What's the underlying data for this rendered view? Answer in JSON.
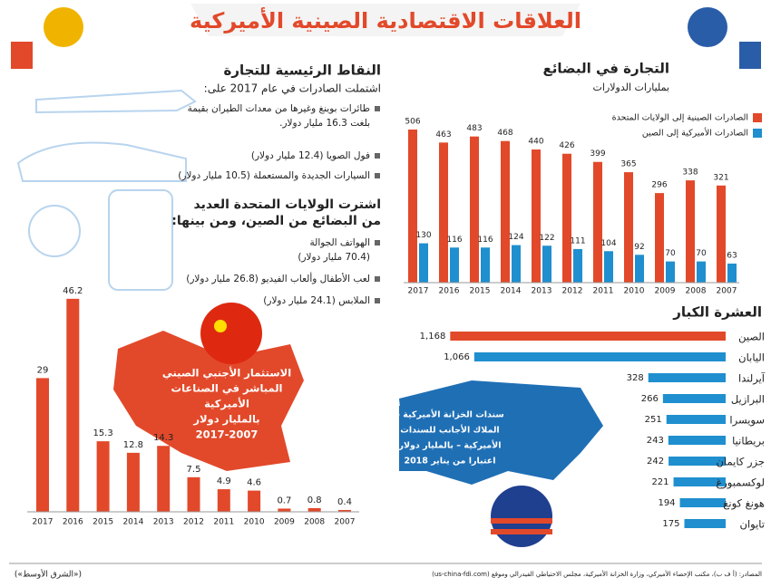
{
  "header": {
    "title": "العلاقات الاقتصادية الصينية الأميركية"
  },
  "trade_points": {
    "title": "النقاط الرئيسية للتجارة",
    "intro": "اشتملت الصادرات في عام 2017 على:",
    "exports": [
      [
        "طائرات بوينغ وغيرها من معدات الطيران بقيمة",
        "بلغت 16.3 مليار دولار."
      ],
      [
        "فول الصويا (12.4 مليار دولار)"
      ],
      [
        "السيارات الجديدة والمستعملة (10.5 مليار دولار)"
      ]
    ],
    "imports_title": [
      "اشترت الولايات المتحدة العديد",
      "من البضائع من الصين، ومن بينها:"
    ],
    "imports": [
      [
        "الهواتف الجوالة",
        "(70.4 مليار دولار)"
      ],
      [
        "لعب الأطفال وألعاب الفيديو (26.8 مليار دولار)"
      ],
      [
        "الملابس (24.1 مليار دولار)"
      ]
    ]
  },
  "chart_data": [
    {
      "type": "grouped-bar",
      "title": "التجارة في البضائع",
      "subtitle": "بمليارات الدولارات",
      "categories": [
        "2017",
        "2016",
        "2015",
        "2014",
        "2013",
        "2012",
        "2011",
        "2010",
        "2009",
        "2008",
        "2007"
      ],
      "series": [
        {
          "name": "الصادرات الصينية إلى الولايات المتحدة",
          "color": "#e2492a",
          "values": [
            506,
            463,
            483,
            468,
            440,
            426,
            399,
            365,
            296,
            338,
            321
          ]
        },
        {
          "name": "الصادرات الأميركية إلى الصين",
          "color": "#1f8fcf",
          "values": [
            130,
            116,
            116,
            124,
            122,
            111,
            104,
            92,
            70,
            70,
            63
          ]
        }
      ]
    },
    {
      "type": "bar",
      "annotation": [
        "الاستثمار الأجنبي الصيني",
        "المباشر في الصناعات",
        "الأميركية",
        "بالمليار دولار",
        "2017-2007"
      ],
      "categories": [
        "2017",
        "2016",
        "2015",
        "2014",
        "2013",
        "2012",
        "2011",
        "2010",
        "2009",
        "2008",
        "2007"
      ],
      "values": [
        29,
        46.2,
        15.3,
        12.8,
        14.3,
        7.5,
        4.9,
        4.6,
        0.7,
        0.8,
        0.4
      ],
      "color": "#e2492a"
    },
    {
      "type": "barh",
      "title": "العشرة الكبار",
      "annotation": [
        "سندات الخزانة الأميركية –",
        "الملاك الأجانب للسندات",
        "الأميركية – بالمليار دولار",
        "اعتبارا من يناير 2018"
      ],
      "categories": [
        "الصين",
        "اليابان",
        "آيرلندا",
        "البرازيل",
        "سويسرا",
        "بريطانيا",
        "جزر كايمان",
        "لوكسمبورغ",
        "هونغ كونغ",
        "تايوان"
      ],
      "values": [
        1168,
        1066,
        328,
        266,
        251,
        243,
        242,
        221,
        194,
        175
      ],
      "value_labels": [
        "1,168",
        "1,066",
        "328",
        "266",
        "251",
        "243",
        "242",
        "221",
        "194",
        "175"
      ],
      "colors": [
        "#e2492a",
        "#1f8fcf",
        "#1f8fcf",
        "#1f8fcf",
        "#1f8fcf",
        "#1f8fcf",
        "#1f8fcf",
        "#1f8fcf",
        "#1f8fcf",
        "#1f8fcf"
      ]
    }
  ],
  "footer": {
    "source": "المصادر: (أ ف ب)، مكتب الإحصاء الأميركي، وزارة الخزانة الأميركية، مجلس الاحتياطي الفيدرالي وموقع (us-china-fdi.com)",
    "credit": "(«الشرق الأوسط»)"
  }
}
